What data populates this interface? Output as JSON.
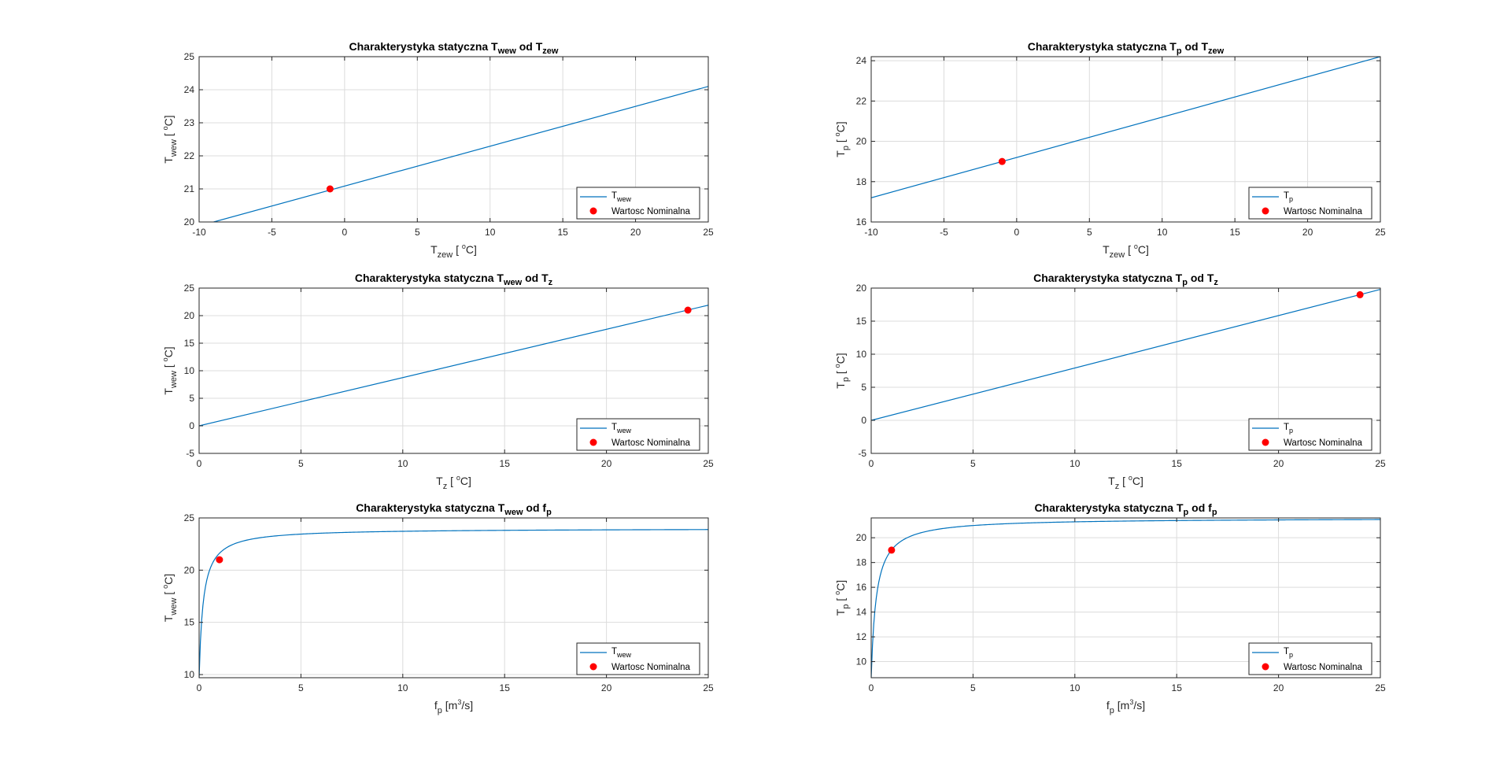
{
  "chart_data": [
    {
      "type": "line",
      "title": {
        "main": "Charakterystyka statyczna T",
        "sub1": "wew",
        "mid": " od T",
        "sub2": "zew"
      },
      "xlabel": {
        "main": "T",
        "sub": "zew",
        "rest": " [ ",
        "sup": "o",
        "unit": "C]"
      },
      "ylabel": {
        "main": "T",
        "sub": "wew",
        "rest": " [ ",
        "sup": "o",
        "unit": "C]"
      },
      "xlim": [
        -10,
        25
      ],
      "ylim": [
        20,
        25
      ],
      "xticks": [
        -10,
        -5,
        0,
        5,
        10,
        15,
        20,
        25
      ],
      "yticks": [
        20,
        21,
        22,
        23,
        24,
        25
      ],
      "curve": "linear",
      "line": {
        "x": [
          -9,
          25
        ],
        "y": [
          20.0,
          24.1
        ]
      },
      "nominal": {
        "x": -1,
        "y": 21
      },
      "legend": {
        "line_main": "T",
        "line_sub": "wew",
        "point": "Wartosc Nominalna",
        "loc": "bottom-right"
      }
    },
    {
      "type": "line",
      "title": {
        "main": "Charakterystyka statyczna T",
        "sub1": "p",
        "mid": " od T",
        "sub2": "zew"
      },
      "xlabel": {
        "main": "T",
        "sub": "zew",
        "rest": " [ ",
        "sup": "o",
        "unit": "C]"
      },
      "ylabel": {
        "main": "T",
        "sub": "p",
        "rest": " [ ",
        "sup": "o",
        "unit": "C]"
      },
      "xlim": [
        -10,
        25
      ],
      "ylim": [
        16,
        24.2
      ],
      "xticks": [
        -10,
        -5,
        0,
        5,
        10,
        15,
        20,
        25
      ],
      "yticks": [
        16,
        18,
        20,
        22,
        24
      ],
      "curve": "linear",
      "line": {
        "x": [
          -10,
          25
        ],
        "y": [
          17.2,
          24.2
        ]
      },
      "nominal": {
        "x": -1,
        "y": 19
      },
      "legend": {
        "line_main": "T",
        "line_sub": "p",
        "point": "Wartosc Nominalna",
        "loc": "bottom-right"
      }
    },
    {
      "type": "line",
      "title": {
        "main": "Charakterystyka statyczna T",
        "sub1": "wew",
        "mid": " od T",
        "sub2": "z"
      },
      "xlabel": {
        "main": "T",
        "sub": "z",
        "rest": " [ ",
        "sup": "o",
        "unit": "C]"
      },
      "ylabel": {
        "main": "T",
        "sub": "wew",
        "rest": " [ ",
        "sup": "o",
        "unit": "C]"
      },
      "xlim": [
        0,
        25
      ],
      "ylim": [
        -5,
        25
      ],
      "xticks": [
        0,
        5,
        10,
        15,
        20,
        25
      ],
      "yticks": [
        -5,
        0,
        5,
        10,
        15,
        20,
        25
      ],
      "curve": "linear",
      "line": {
        "x": [
          0,
          25
        ],
        "y": [
          0,
          21.9
        ]
      },
      "nominal": {
        "x": 24,
        "y": 21
      },
      "legend": {
        "line_main": "T",
        "line_sub": "wew",
        "point": "Wartosc Nominalna",
        "loc": "bottom-right"
      }
    },
    {
      "type": "line",
      "title": {
        "main": "Charakterystyka statyczna T",
        "sub1": "p",
        "mid": " od T",
        "sub2": "z"
      },
      "xlabel": {
        "main": "T",
        "sub": "z",
        "rest": " [ ",
        "sup": "o",
        "unit": "C]"
      },
      "ylabel": {
        "main": "T",
        "sub": "p",
        "rest": " [ ",
        "sup": "o",
        "unit": "C]"
      },
      "xlim": [
        0,
        25
      ],
      "ylim": [
        -5,
        20
      ],
      "xticks": [
        0,
        5,
        10,
        15,
        20,
        25
      ],
      "yticks": [
        -5,
        0,
        5,
        10,
        15,
        20
      ],
      "curve": "linear",
      "line": {
        "x": [
          0,
          25
        ],
        "y": [
          0,
          19.8
        ]
      },
      "nominal": {
        "x": 24,
        "y": 19
      },
      "legend": {
        "line_main": "T",
        "line_sub": "p",
        "point": "Wartosc Nominalna",
        "loc": "bottom-right"
      }
    },
    {
      "type": "line",
      "title": {
        "main": "Charakterystyka statyczna T",
        "sub1": "wew",
        "mid": " od f",
        "sub2": "p"
      },
      "xlabel": {
        "main": "f",
        "sub": "p",
        "rest": " [m",
        "sup": "3",
        "unit": "/s]"
      },
      "ylabel": {
        "main": "T",
        "sub": "wew",
        "rest": " [ ",
        "sup": "o",
        "unit": "C]"
      },
      "xlim": [
        0,
        25
      ],
      "ylim": [
        9.7,
        25
      ],
      "xticks": [
        0,
        5,
        10,
        15,
        20,
        25
      ],
      "yticks": [
        10,
        15,
        20,
        25
      ],
      "curve": "saturation",
      "saturation": {
        "A": 24.0,
        "T0": 9.7,
        "k": 0.2
      },
      "nominal": {
        "x": 1,
        "y": 21
      },
      "legend": {
        "line_main": "T",
        "line_sub": "wew",
        "point": "Wartosc Nominalna",
        "loc": "bottom-right"
      }
    },
    {
      "type": "line",
      "title": {
        "main": "Charakterystyka statyczna T",
        "sub1": "p",
        "mid": " od f",
        "sub2": "p"
      },
      "xlabel": {
        "main": "f",
        "sub": "p",
        "rest": " [m",
        "sup": "3",
        "unit": "/s]"
      },
      "ylabel": {
        "main": "T",
        "sub": "p",
        "rest": " [ ",
        "sup": "o",
        "unit": "C]"
      },
      "xlim": [
        0,
        25
      ],
      "ylim": [
        8.7,
        21.6
      ],
      "xticks": [
        0,
        5,
        10,
        15,
        20,
        25
      ],
      "yticks": [
        10,
        12,
        14,
        16,
        18,
        20
      ],
      "curve": "saturation",
      "saturation": {
        "A": 21.6,
        "T0": 8.7,
        "k": 0.25
      },
      "nominal": {
        "x": 1,
        "y": 19
      },
      "legend": {
        "line_main": "T",
        "line_sub": "p",
        "point": "Wartosc Nominalna",
        "loc": "bottom-right"
      }
    }
  ],
  "colors": {
    "line": "#0072bd",
    "nominal": "#ff0000",
    "grid": "#dcdcdc",
    "axis": "#262626"
  }
}
